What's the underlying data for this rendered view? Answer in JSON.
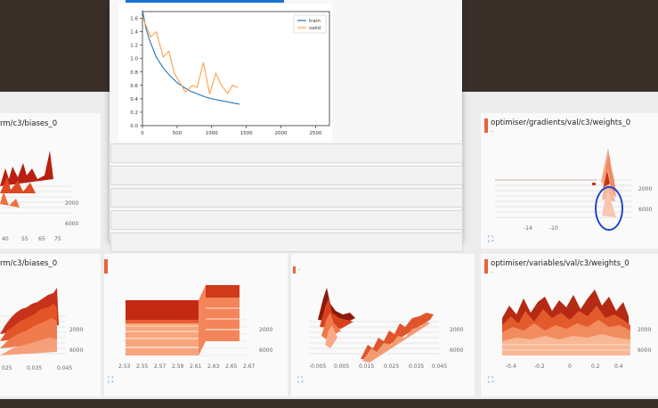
{
  "cards": {
    "top_left_title": "rm/c3/biases_0",
    "top_right_title": "optimiser/gradients/val/c3/weights_0",
    "top_right_sub": "-",
    "bottom_left_title": "rm/c3/biases_0",
    "bottom_right_title": "optimiser/variables/val/c3/weights_0",
    "bottom_right_sub": "-",
    "bottom_mid_sub": "-"
  },
  "axes": {
    "depth_2000": "2000",
    "depth_6000": "6000",
    "top_left_x": [
      "40",
      "55",
      "65",
      "75"
    ],
    "top_right_x": [
      "-14",
      "-10"
    ],
    "bottom_left_x": [
      "025",
      "0.035",
      "0.045"
    ],
    "bottom_mid1_x": [
      "2.53",
      "2.55",
      "2.57",
      "2.59",
      "2.61",
      "2.63",
      "2.65",
      "2.67"
    ],
    "bottom_mid2_x": [
      "-0.005",
      "0.005",
      "0.015",
      "0.025",
      "0.035",
      "0.045"
    ],
    "bottom_right_x": [
      "-0.4",
      "-0.2",
      "0",
      "0.2",
      "0.4"
    ]
  },
  "icons": {
    "expand": "fullscreen-icon",
    "highlight": "blue-circle-annotation"
  },
  "colors": {
    "accent": "#e4643b",
    "train": "#1f77b4",
    "valid": "#ff9f4a",
    "highlight": "#2248c8"
  },
  "chart_data": {
    "type": "line",
    "title": "",
    "xlabel": "",
    "ylabel": "",
    "xlim": [
      0,
      2700
    ],
    "ylim": [
      0,
      1.7
    ],
    "x_ticks": [
      0,
      500,
      1000,
      1500,
      2000,
      2500
    ],
    "y_ticks": [
      0.0,
      0.2,
      0.4,
      0.6,
      0.8,
      1.0,
      1.2,
      1.4,
      1.6
    ],
    "legend_position": "top-right",
    "series": [
      {
        "name": "train",
        "color": "#1f77b4",
        "x": [
          0,
          50,
          100,
          150,
          200,
          300,
          400,
          500,
          600,
          700,
          800,
          900,
          1000,
          1100,
          1200,
          1300,
          1400
        ],
        "values": [
          1.72,
          1.45,
          1.28,
          1.15,
          1.02,
          0.86,
          0.74,
          0.64,
          0.57,
          0.51,
          0.47,
          0.43,
          0.4,
          0.38,
          0.36,
          0.34,
          0.32
        ]
      },
      {
        "name": "valid",
        "color": "#ff9f4a",
        "x": [
          0,
          120,
          200,
          300,
          380,
          460,
          540,
          620,
          720,
          790,
          880,
          970,
          1060,
          1140,
          1230,
          1300,
          1380
        ],
        "values": [
          1.62,
          1.32,
          1.4,
          1.02,
          1.11,
          0.78,
          0.64,
          0.5,
          0.6,
          0.57,
          0.94,
          0.47,
          0.78,
          0.6,
          0.48,
          0.6,
          0.57
        ]
      }
    ]
  }
}
